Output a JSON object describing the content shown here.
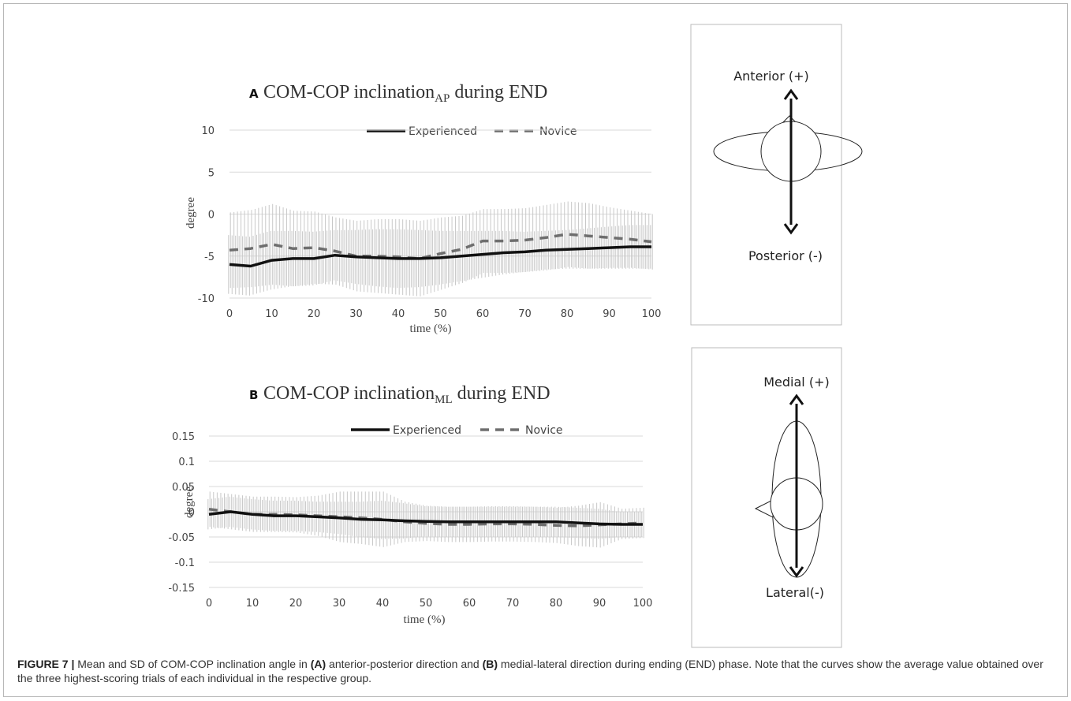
{
  "figure": {
    "caption_label": "FIGURE 7 |",
    "caption_part1": "Mean and SD of COM-COP inclination angle in",
    "caption_ref_a": "(A)",
    "caption_part2": "anterior-posterior direction and",
    "caption_ref_b": "(B)",
    "caption_part3": "medial-lateral direction during ending (END) phase. Note that the curves show the average value obtained over the three highest-scoring trials of each individual in the respective group."
  },
  "panels": [
    {
      "letter": "A",
      "title_main": "COM-COP inclination",
      "title_sub": "AP",
      "title_tail": " during END",
      "legend": [
        "Experienced",
        "Novice"
      ]
    },
    {
      "letter": "B",
      "title_main": "COM-COP inclination",
      "title_sub": "ML",
      "title_tail": " during END",
      "legend": [
        "Experienced",
        "Novice"
      ]
    }
  ],
  "diagrams": [
    {
      "top_label": "Anterior (+)",
      "bottom_label": "Posterior (-)"
    },
    {
      "top_label": "Medial (+)",
      "bottom_label": "Lateral(-)"
    }
  ],
  "colors": {
    "experienced": "#111111",
    "novice": "#6e6e6e",
    "sd_bars": "#c8c8c8",
    "grid": "#d9d9d9"
  },
  "chart_data": [
    {
      "type": "line",
      "title": "COM-COP inclination AP during END",
      "xlabel": "time (%)",
      "ylabel": "degree",
      "xlim": [
        0,
        100
      ],
      "ylim": [
        -10,
        10
      ],
      "x_ticks": [
        0,
        10,
        20,
        30,
        40,
        50,
        60,
        70,
        80,
        90,
        100
      ],
      "y_ticks": [
        10,
        5,
        0,
        -5,
        -10
      ],
      "grid": true,
      "legend_position": "top",
      "x": [
        0,
        5,
        10,
        15,
        20,
        25,
        30,
        35,
        40,
        45,
        50,
        55,
        60,
        65,
        70,
        75,
        80,
        85,
        90,
        95,
        100
      ],
      "series": [
        {
          "name": "Experienced",
          "style": "solid",
          "values": [
            -6.0,
            -6.2,
            -5.5,
            -5.3,
            -5.3,
            -4.9,
            -5.1,
            -5.2,
            -5.3,
            -5.3,
            -5.2,
            -5.0,
            -4.8,
            -4.6,
            -4.5,
            -4.3,
            -4.2,
            -4.1,
            -4.0,
            -3.9,
            -3.9
          ],
          "sd": [
            3.5,
            3.5,
            3.5,
            3.3,
            3.2,
            3.0,
            3.2,
            3.4,
            3.5,
            3.4,
            3.2,
            3.0,
            2.8,
            2.6,
            2.4,
            2.3,
            2.3,
            2.4,
            2.5,
            2.6,
            2.6
          ]
        },
        {
          "name": "Novice",
          "style": "dashed",
          "values": [
            -4.3,
            -4.1,
            -3.6,
            -4.1,
            -4.0,
            -4.4,
            -5.0,
            -5.0,
            -5.1,
            -5.3,
            -4.7,
            -4.2,
            -3.2,
            -3.2,
            -3.1,
            -2.8,
            -2.4,
            -2.6,
            -2.8,
            -3.0,
            -3.3
          ],
          "sd": [
            4.5,
            4.6,
            4.8,
            4.5,
            4.3,
            4.0,
            4.2,
            4.4,
            4.5,
            4.5,
            4.3,
            4.0,
            3.8,
            3.8,
            3.8,
            3.9,
            3.9,
            3.9,
            3.6,
            3.4,
            3.3
          ]
        }
      ]
    },
    {
      "type": "line",
      "title": "COM-COP inclination ML during END",
      "xlabel": "time (%)",
      "ylabel": "degree",
      "xlim": [
        0,
        100
      ],
      "ylim": [
        -0.15,
        0.15
      ],
      "x_ticks": [
        0,
        10,
        20,
        30,
        40,
        50,
        60,
        70,
        80,
        90,
        100
      ],
      "y_ticks": [
        0.15,
        0.1,
        0.05,
        0,
        -0.05,
        -0.1,
        -0.15
      ],
      "grid": true,
      "legend_position": "top",
      "x": [
        0,
        5,
        10,
        15,
        20,
        25,
        30,
        35,
        40,
        45,
        50,
        55,
        60,
        65,
        70,
        75,
        80,
        85,
        90,
        95,
        100
      ],
      "series": [
        {
          "name": "Experienced",
          "style": "solid",
          "values": [
            -0.005,
            0.0,
            -0.005,
            -0.008,
            -0.008,
            -0.01,
            -0.012,
            -0.015,
            -0.016,
            -0.018,
            -0.019,
            -0.02,
            -0.02,
            -0.02,
            -0.02,
            -0.02,
            -0.02,
            -0.022,
            -0.024,
            -0.025,
            -0.025
          ],
          "sd": [
            0.03,
            0.03,
            0.03,
            0.03,
            0.03,
            0.03,
            0.032,
            0.035,
            0.038,
            0.035,
            0.03,
            0.03,
            0.03,
            0.03,
            0.03,
            0.03,
            0.03,
            0.03,
            0.03,
            0.025,
            0.025
          ]
        },
        {
          "name": "Novice",
          "style": "dashed",
          "values": [
            0.005,
            0.0,
            -0.005,
            -0.005,
            -0.006,
            -0.008,
            -0.01,
            -0.012,
            -0.015,
            -0.02,
            -0.023,
            -0.025,
            -0.025,
            -0.024,
            -0.024,
            -0.025,
            -0.027,
            -0.028,
            -0.026,
            -0.024,
            -0.022
          ],
          "sd": [
            0.035,
            0.035,
            0.035,
            0.035,
            0.035,
            0.04,
            0.05,
            0.052,
            0.055,
            0.04,
            0.035,
            0.035,
            0.035,
            0.035,
            0.035,
            0.035,
            0.035,
            0.04,
            0.045,
            0.03,
            0.03
          ]
        }
      ]
    }
  ]
}
